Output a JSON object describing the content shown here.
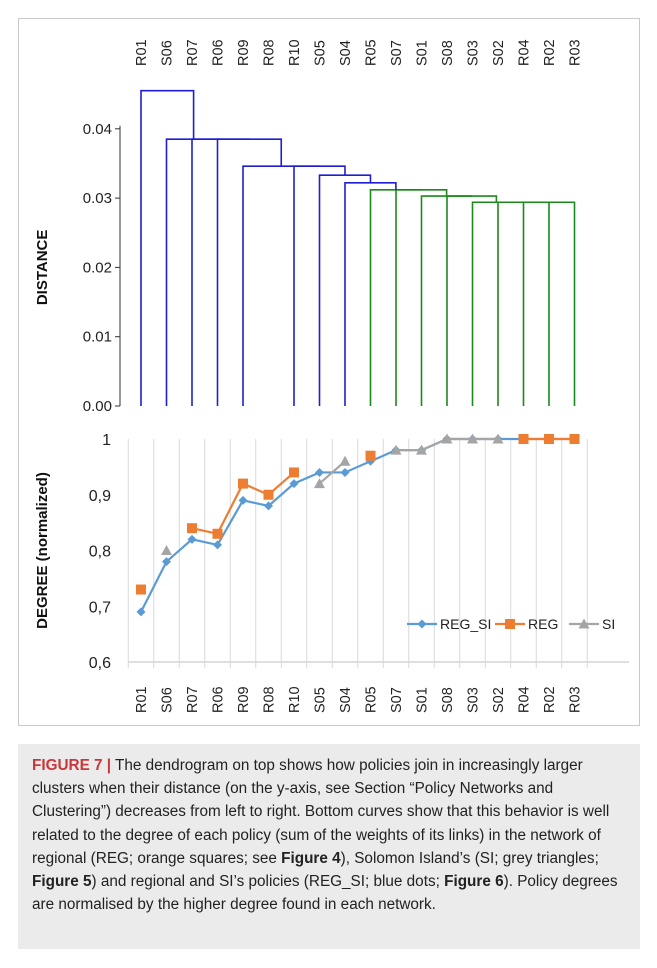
{
  "chart_data": [
    {
      "type": "dendrogram",
      "ylabel": "DISTANCE",
      "ylim": [
        0,
        0.04
      ],
      "yticks": [
        "0.00",
        "0.01",
        "0.02",
        "0.03",
        "0.04"
      ],
      "leaf_order": [
        "R01",
        "S06",
        "R07",
        "R06",
        "R09",
        "R08",
        "R10",
        "S05",
        "S04",
        "R05",
        "S07",
        "S01",
        "S08",
        "S03",
        "S02",
        "R04",
        "R02",
        "R03"
      ],
      "colors": {
        "blue_cluster": "#1f1fd1",
        "green_cluster": "#1a8a1a"
      },
      "merges": [
        {
          "a": 16,
          "b": 17,
          "h": 0.0294,
          "cluster": "green"
        },
        {
          "a": 15,
          "b": 16.5,
          "h": 0.0294,
          "cluster": "green"
        },
        {
          "a": 14,
          "b": 15.75,
          "h": 0.0294,
          "cluster": "green"
        },
        {
          "a": 13,
          "b": 14.875,
          "h": 0.0294,
          "cluster": "green"
        },
        {
          "a": 12,
          "b": 13.9375,
          "h": 0.0303,
          "cluster": "green"
        },
        {
          "a": 11,
          "b": 12.96875,
          "h": 0.0303,
          "cluster": "green"
        },
        {
          "a": 10,
          "b": 11.984375,
          "h": 0.0312,
          "cluster": "green"
        },
        {
          "a": 9,
          "b": 10.9921875,
          "h": 0.0312,
          "cluster": "green"
        },
        {
          "a": 8,
          "b": 9.99609375,
          "h": 0.0322,
          "cluster": "blue"
        },
        {
          "a": 7,
          "b": 8.998046875,
          "h": 0.0333,
          "cluster": "blue"
        },
        {
          "a": 6,
          "b": 7.9990234375,
          "h": 0.0346,
          "cluster": "blue"
        },
        {
          "a": 4,
          "b": 6.99951171875,
          "h": 0.0346,
          "cluster": "blue"
        },
        {
          "a": 3,
          "b": 5.499755859375,
          "h": 0.0385,
          "cluster": "blue"
        },
        {
          "a": 2,
          "b": 4.2498779296875,
          "h": 0.0385,
          "cluster": "blue"
        },
        {
          "a": 1,
          "b": 3.12493896484375,
          "h": 0.0385,
          "cluster": "blue"
        },
        {
          "a": 0,
          "b": 2.062469482421875,
          "h": 0.0455,
          "cluster": "blue"
        }
      ]
    },
    {
      "type": "line",
      "ylabel": "DEGREE (normalized)",
      "ylim": [
        0.6,
        1.0
      ],
      "yticks": [
        "0,6",
        "0,7",
        "0,8",
        "0,9",
        "1"
      ],
      "categories": [
        "R01",
        "S06",
        "R07",
        "R06",
        "R09",
        "R08",
        "R10",
        "S05",
        "S04",
        "R05",
        "S07",
        "S01",
        "S08",
        "S03",
        "S02",
        "R04",
        "R02",
        "R03"
      ],
      "grid": true,
      "legend": "bottom-right",
      "series": [
        {
          "name": "REG_SI",
          "color": "#5b9bd5",
          "marker": "diamond",
          "values": [
            0.69,
            0.78,
            0.82,
            0.81,
            0.89,
            0.88,
            0.92,
            0.94,
            0.94,
            0.96,
            0.98,
            0.98,
            1,
            1,
            1,
            1,
            1,
            1
          ]
        },
        {
          "name": "REG",
          "color": "#ed7d31",
          "marker": "square",
          "values": [
            0.73,
            null,
            0.84,
            0.83,
            0.92,
            0.9,
            0.94,
            null,
            null,
            0.97,
            null,
            null,
            null,
            null,
            null,
            1,
            1,
            1
          ]
        },
        {
          "name": "SI",
          "color": "#a5a5a5",
          "marker": "triangle",
          "values": [
            null,
            0.8,
            null,
            null,
            null,
            null,
            null,
            0.92,
            0.96,
            null,
            0.98,
            0.98,
            1,
            1,
            1,
            null,
            null,
            null
          ]
        }
      ]
    }
  ],
  "caption": {
    "label": "FIGURE 7",
    "separator": "|",
    "text1": " The dendrogram on top shows how policies join in increasingly larger clusters when their distance (on the y-axis, see Section “Policy Networks and Clustering”) decreases from left to right. Bottom curves show that this behavior is well related to the degree of each policy (sum of the weights of its links) in the network of regional (REG; orange squares; see ",
    "ref1": "Figure 4",
    "text2": "), Solomon Island’s (SI; grey triangles; ",
    "ref2": "Figure 5",
    "text3": ") and regional and SI’s policies (REG_SI; blue dots; ",
    "ref3": "Figure 6",
    "text4": "). Policy degrees are normalised by the higher degree found in each network."
  }
}
